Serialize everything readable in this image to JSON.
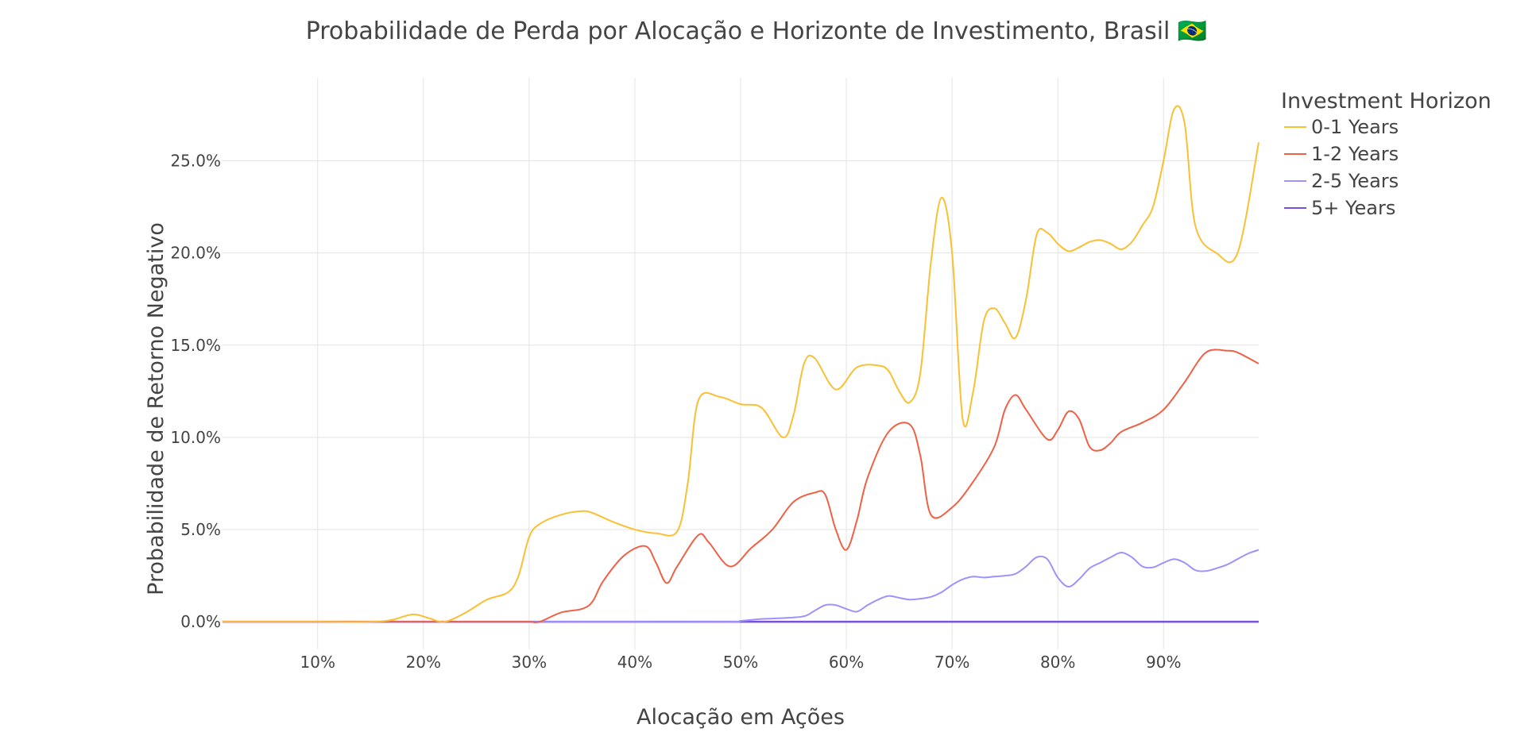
{
  "chart_data": {
    "type": "line",
    "title": "Probabilidade de Perda por Alocação e Horizonte de Investimento, Brasil 🇧🇷",
    "xlabel": "Alocação em Ações",
    "ylabel": "Probabilidade de Retorno Negativo",
    "xlim": [
      1,
      99
    ],
    "ylim": [
      -1.5,
      29.5
    ],
    "x_ticks": [
      10,
      20,
      30,
      40,
      50,
      60,
      70,
      80,
      90
    ],
    "x_tick_labels": [
      "10%",
      "20%",
      "30%",
      "40%",
      "50%",
      "60%",
      "70%",
      "80%",
      "90%"
    ],
    "y_ticks": [
      0,
      5,
      10,
      15,
      20,
      25
    ],
    "y_tick_labels": [
      "0.0%",
      "5.0%",
      "10.0%",
      "15.0%",
      "20.0%",
      "25.0%"
    ],
    "grid": true,
    "legend": {
      "title": "Investment Horizon",
      "position": "top-right"
    },
    "series": [
      {
        "name": "0-1 Years",
        "color": "#fbbf34",
        "x": [
          1,
          5,
          10,
          15,
          17,
          19,
          20.5,
          22,
          24,
          26,
          28,
          29,
          30,
          31,
          33,
          35,
          36,
          38,
          40,
          42,
          44,
          45,
          46,
          48,
          50,
          52,
          54,
          55,
          56,
          57,
          59,
          61,
          63,
          64,
          65,
          66,
          67,
          68,
          69,
          70,
          71,
          72,
          73,
          74,
          75,
          76,
          77,
          78,
          79,
          80,
          81,
          82,
          83,
          84,
          85,
          86,
          87,
          88,
          89,
          90,
          91,
          92,
          93,
          95,
          97,
          99
        ],
        "y": [
          0,
          0,
          0,
          0,
          0.1,
          0.4,
          0.2,
          0,
          0.5,
          1.2,
          1.6,
          2.5,
          4.6,
          5.3,
          5.8,
          6.0,
          5.9,
          5.4,
          5.0,
          4.8,
          4.9,
          7.5,
          12.0,
          12.2,
          11.8,
          11.6,
          10.0,
          11.2,
          14.0,
          14.3,
          12.6,
          13.8,
          13.9,
          13.6,
          12.5,
          11.9,
          13.5,
          19.5,
          23.0,
          20.0,
          11.0,
          12.5,
          16.3,
          17.0,
          16.2,
          15.4,
          17.5,
          21.0,
          21.1,
          20.5,
          20.1,
          20.3,
          20.6,
          20.7,
          20.5,
          20.2,
          20.6,
          21.5,
          22.5,
          25.0,
          27.8,
          27.0,
          21.5,
          20.0,
          20.0,
          26.0
        ]
      },
      {
        "name": "1-2 Years",
        "color": "#ef6146",
        "x": [
          1,
          10,
          20,
          28,
          30,
          31,
          33,
          35,
          36,
          37,
          39,
          41,
          42,
          43,
          44,
          46,
          47,
          49,
          51,
          53,
          55,
          57,
          58,
          59,
          60,
          61,
          62,
          64,
          66,
          67,
          68,
          70,
          72,
          74,
          75,
          76,
          77,
          79,
          80,
          81,
          82,
          83,
          84,
          85,
          86,
          88,
          90,
          92,
          94,
          96,
          97,
          99
        ],
        "y": [
          0,
          0,
          0,
          0,
          0,
          0,
          0.5,
          0.7,
          1.1,
          2.2,
          3.6,
          4.1,
          3.2,
          2.1,
          3.0,
          4.7,
          4.3,
          3.0,
          4.0,
          5.0,
          6.5,
          7.0,
          6.9,
          5.0,
          3.9,
          5.5,
          7.8,
          10.3,
          10.7,
          9.0,
          5.8,
          6.2,
          7.6,
          9.5,
          11.5,
          12.3,
          11.5,
          9.9,
          10.4,
          11.4,
          11.0,
          9.5,
          9.3,
          9.7,
          10.3,
          10.8,
          11.5,
          13.0,
          14.6,
          14.7,
          14.6,
          14.0
        ]
      },
      {
        "name": "2-5 Years",
        "color": "#9e92fc",
        "x": [
          1,
          10,
          20,
          30,
          40,
          49,
          50,
          52,
          54,
          56,
          57,
          58,
          59,
          60,
          61,
          62,
          63,
          64,
          65,
          66,
          67,
          68,
          69,
          70,
          71,
          72,
          73,
          74,
          75,
          76,
          77,
          78,
          79,
          80,
          81,
          82,
          83,
          84,
          85,
          86,
          87,
          88,
          89,
          90,
          91,
          92,
          93,
          94,
          95,
          96,
          97,
          98,
          99
        ],
        "y": [
          0,
          0,
          0,
          0,
          0,
          0,
          0.05,
          0.15,
          0.2,
          0.3,
          0.6,
          0.9,
          0.9,
          0.7,
          0.55,
          0.9,
          1.2,
          1.4,
          1.3,
          1.2,
          1.25,
          1.35,
          1.6,
          2.0,
          2.3,
          2.45,
          2.4,
          2.45,
          2.5,
          2.6,
          3.0,
          3.5,
          3.4,
          2.4,
          1.9,
          2.3,
          2.9,
          3.2,
          3.5,
          3.75,
          3.5,
          3.0,
          2.95,
          3.2,
          3.4,
          3.2,
          2.8,
          2.75,
          2.9,
          3.1,
          3.4,
          3.7,
          3.9
        ]
      },
      {
        "name": "5+ Years",
        "color": "#7751de",
        "x": [
          1,
          99
        ],
        "y": [
          0,
          0
        ]
      }
    ]
  }
}
